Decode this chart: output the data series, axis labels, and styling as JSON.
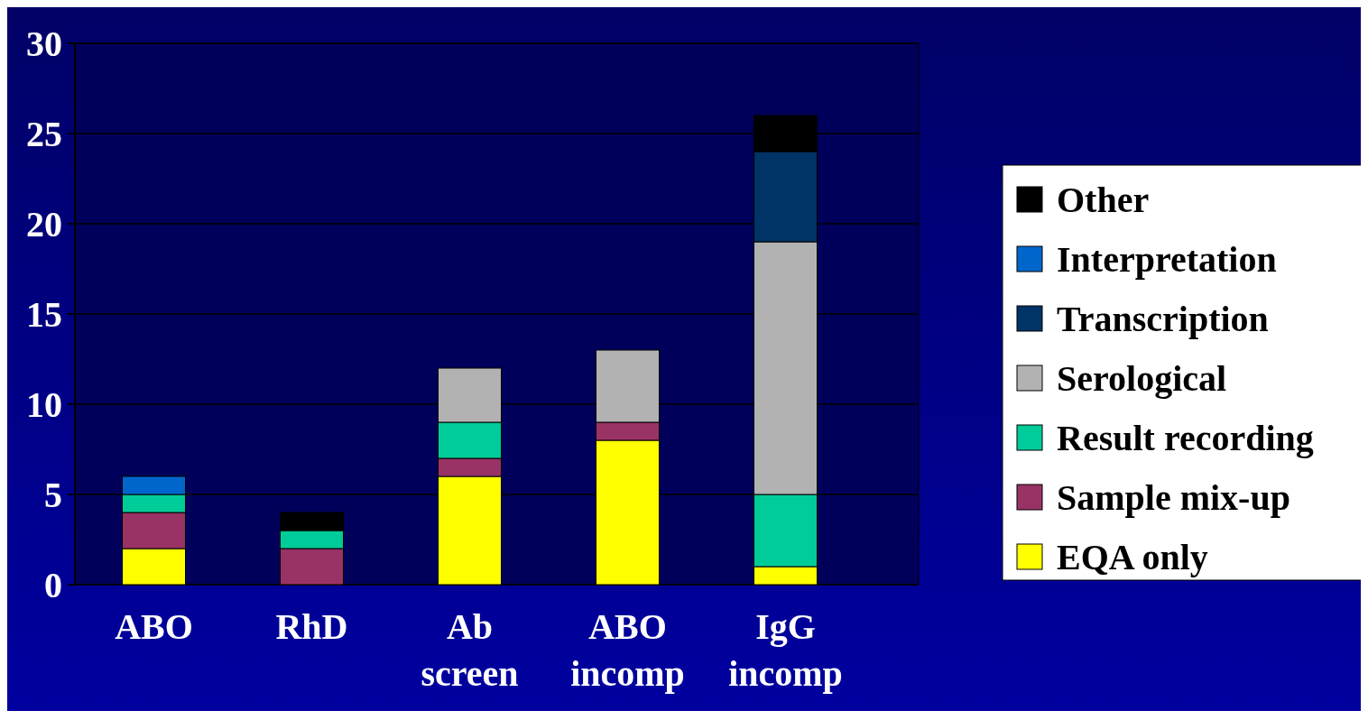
{
  "chart_data": {
    "type": "bar",
    "stacked": true,
    "categories": [
      "ABO",
      "RhD",
      "Ab screen",
      "ABO incomp",
      "IgG incomp"
    ],
    "series": [
      {
        "name": "EQA only",
        "color": "#ffff00",
        "values": [
          2,
          0,
          6,
          8,
          1
        ]
      },
      {
        "name": "Sample mix-up",
        "color": "#993366",
        "values": [
          2,
          2,
          1,
          1,
          0
        ]
      },
      {
        "name": "Result recording",
        "color": "#00cc99",
        "values": [
          1,
          1,
          2,
          0,
          4
        ]
      },
      {
        "name": "Serological",
        "color": "#b2b2b2",
        "values": [
          0,
          0,
          3,
          4,
          14
        ]
      },
      {
        "name": "Transcription",
        "color": "#003366",
        "values": [
          0,
          0,
          0,
          0,
          5
        ]
      },
      {
        "name": "Interpretation",
        "color": "#0066cc",
        "values": [
          1,
          0,
          0,
          0,
          0
        ]
      },
      {
        "name": "Other",
        "color": "#000000",
        "values": [
          0,
          1,
          0,
          0,
          2
        ]
      }
    ],
    "ylim": [
      0,
      30
    ],
    "yticks": [
      0,
      5,
      10,
      15,
      20,
      25,
      30
    ],
    "grid": "y",
    "legend": "right"
  }
}
